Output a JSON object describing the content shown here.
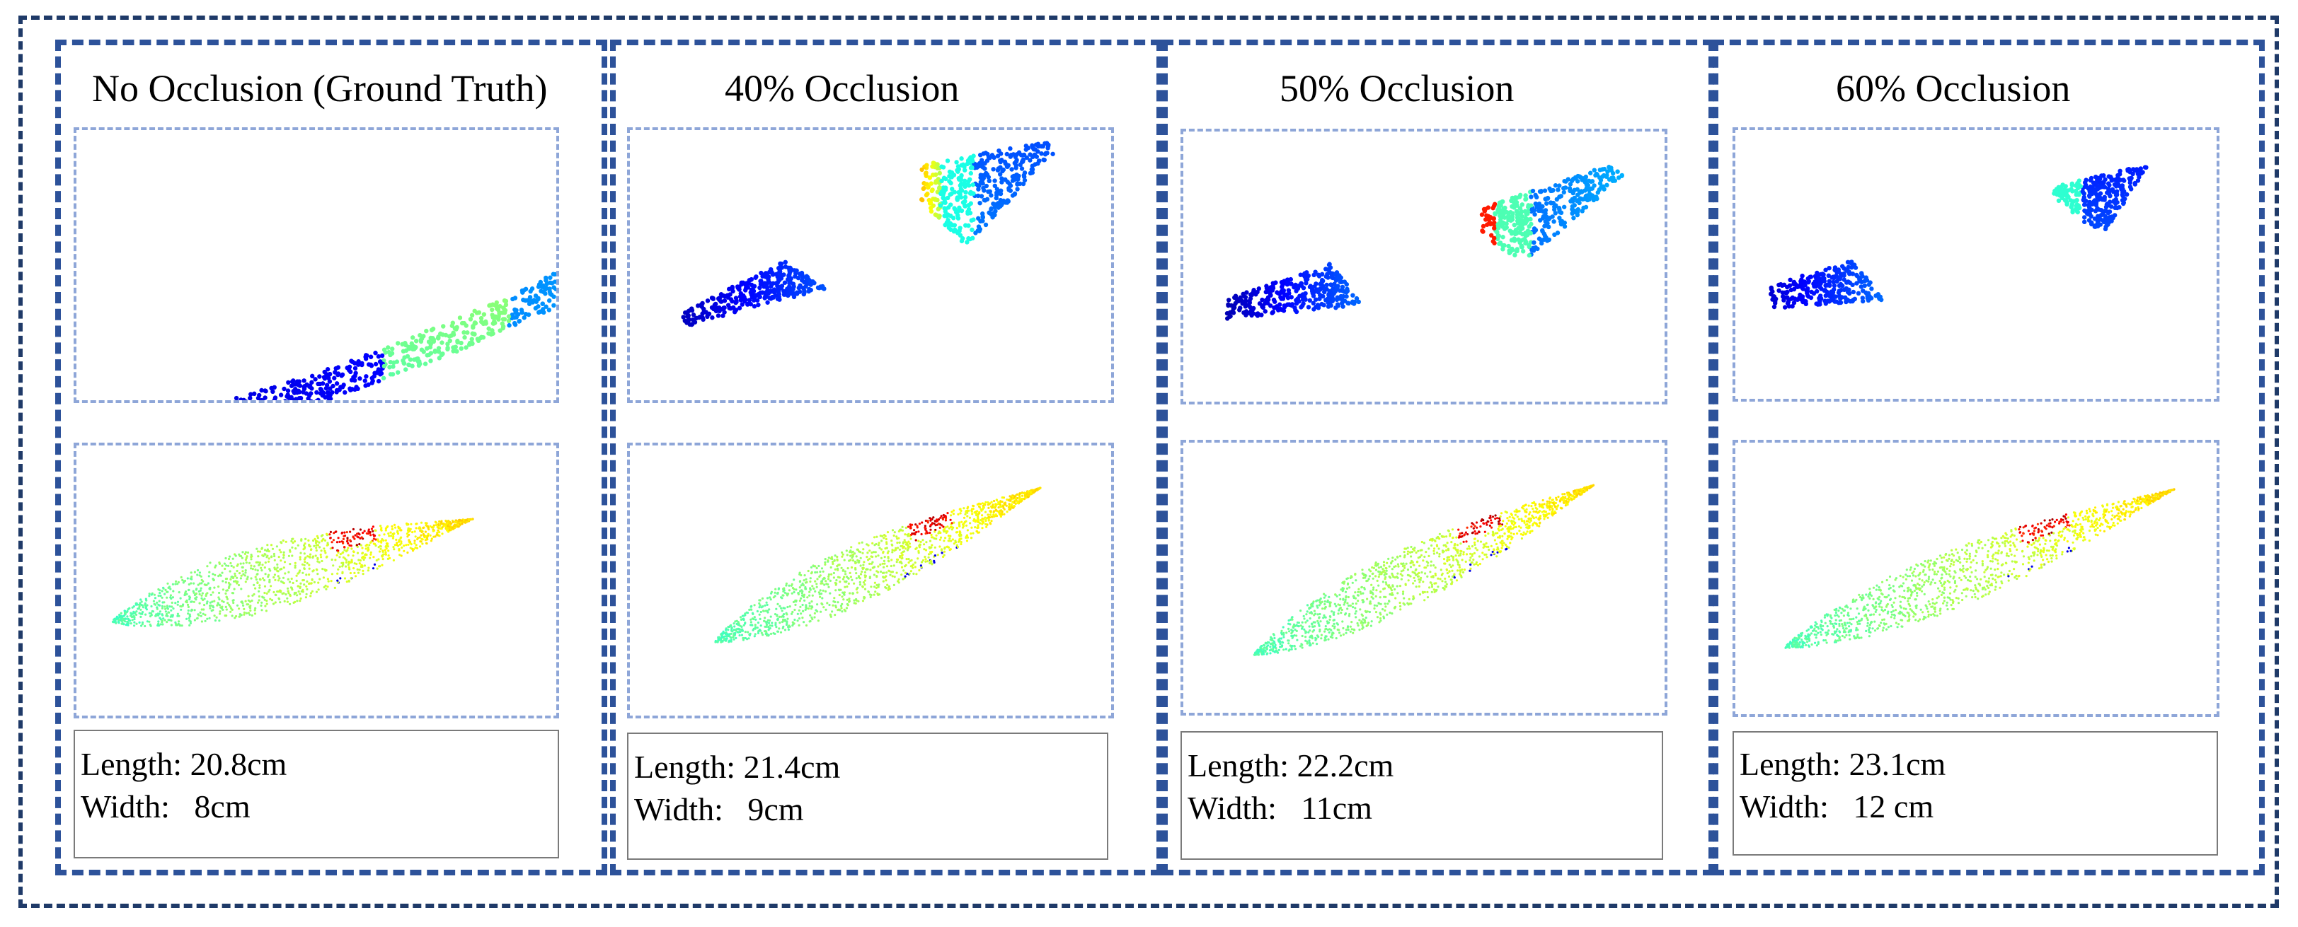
{
  "panels": [
    {
      "title": "No Occlusion (Ground Truth)",
      "length_label": "Length:",
      "length_value": "20.8cm",
      "width_label": "Width:",
      "width_value": "8cm"
    },
    {
      "title": "40% Occlusion",
      "length_label": "Length:",
      "length_value": "21.4cm",
      "width_label": "Width:",
      "width_value": "9cm"
    },
    {
      "title": "50% Occlusion",
      "length_label": "Length:",
      "length_value": "22.2cm",
      "width_label": "Width:",
      "width_value": "11cm"
    },
    {
      "title": "60% Occlusion",
      "length_label": "Length:",
      "length_value": "23.1cm",
      "width_label": "Width:",
      "width_value": "12 cm"
    }
  ],
  "colors": {
    "outer_border": "#1f3a68",
    "panel_border": "#2d529a",
    "box_border": "#8ea6d8"
  }
}
